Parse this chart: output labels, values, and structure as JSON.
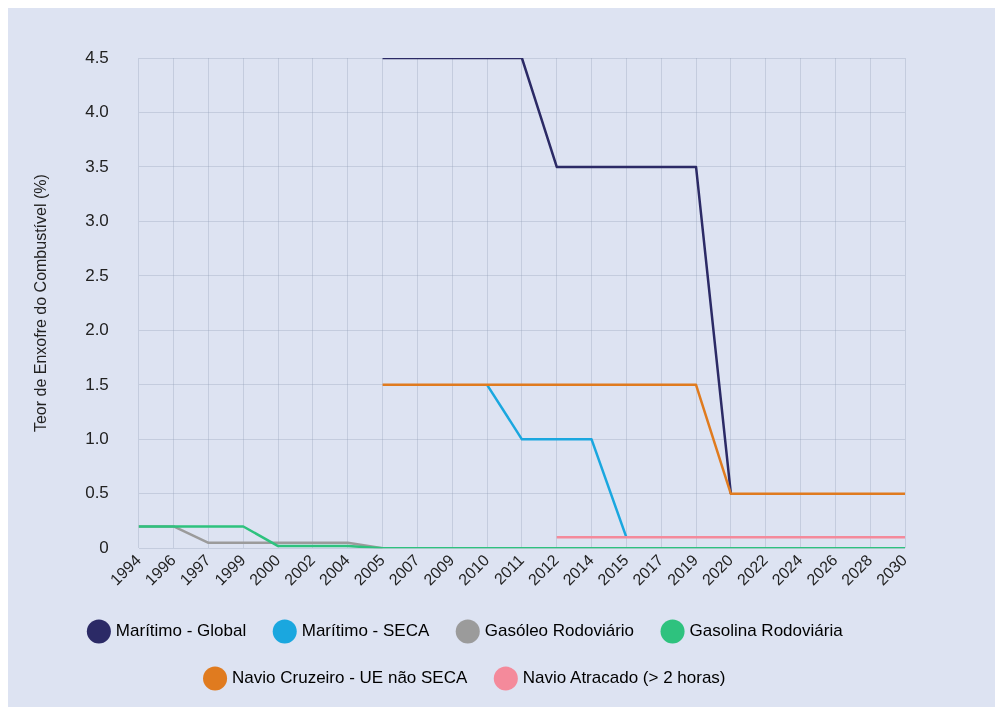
{
  "chart_data": {
    "type": "line",
    "ylabel": "Teor de Enxofre do Combustível (%)",
    "categories": [
      "1994",
      "1996",
      "1997",
      "1999",
      "2000",
      "2002",
      "2004",
      "2005",
      "2007",
      "2009",
      "2010",
      "2011",
      "2012",
      "2014",
      "2015",
      "2017",
      "2019",
      "2020",
      "2022",
      "2024",
      "2026",
      "2028",
      "2030"
    ],
    "series": [
      {
        "name": "Marítimo - Global",
        "color": "#2b2a66",
        "values": [
          null,
          null,
          null,
          null,
          null,
          null,
          null,
          4.5,
          4.5,
          4.5,
          4.5,
          4.5,
          3.5,
          3.5,
          3.5,
          3.5,
          3.5,
          0.5,
          null,
          null,
          null,
          null,
          null
        ]
      },
      {
        "name": "Marítimo - SECA",
        "color": "#1aa7df",
        "values": [
          null,
          null,
          null,
          null,
          null,
          null,
          null,
          null,
          null,
          null,
          1.5,
          1.0,
          1.0,
          1.0,
          0.1,
          null,
          null,
          null,
          null,
          null,
          null,
          null,
          null
        ]
      },
      {
        "name": "Gasóleo Rodoviário",
        "color": "#9b9b9b",
        "values": [
          0.2,
          0.2,
          0.05,
          0.05,
          0.05,
          0.05,
          0.05,
          0,
          null,
          null,
          null,
          null,
          null,
          null,
          null,
          null,
          null,
          null,
          null,
          null,
          null,
          null,
          null
        ]
      },
      {
        "name": "Gasolina Rodoviária",
        "color": "#2ec27e",
        "values": [
          0.2,
          0.2,
          0.2,
          0.2,
          0.02,
          0.02,
          0.02,
          0,
          0,
          0,
          0,
          0,
          0,
          0,
          0,
          0,
          0,
          0,
          0,
          0,
          0,
          0,
          0
        ]
      },
      {
        "name": "Navio Cruzeiro - UE não SECA",
        "color": "#e07b1f",
        "values": [
          null,
          null,
          null,
          null,
          null,
          null,
          null,
          1.5,
          1.5,
          1.5,
          1.5,
          1.5,
          1.5,
          1.5,
          1.5,
          1.5,
          1.5,
          0.5,
          0.5,
          0.5,
          0.5,
          0.5,
          0.5
        ]
      },
      {
        "name": "Navio Atracado (> 2 horas)",
        "color": "#f48a9b",
        "values": [
          null,
          null,
          null,
          null,
          null,
          null,
          null,
          null,
          null,
          null,
          null,
          null,
          0.1,
          0.1,
          0.1,
          0.1,
          0.1,
          0.1,
          0.1,
          0.1,
          0.1,
          0.1,
          0.1
        ]
      }
    ],
    "ylim": [
      0,
      4.5
    ],
    "yticks": [
      0,
      {
        "value": 0.5,
        "label": "0.5"
      },
      {
        "value": 1,
        "label": "1.0"
      },
      {
        "value": 1.5,
        "label": "1.5"
      },
      {
        "value": 2,
        "label": "2.0"
      },
      {
        "value": 2.5,
        "label": "2.5"
      },
      {
        "value": 3,
        "label": "3.0"
      },
      {
        "value": 3.5,
        "label": "3.5"
      },
      {
        "value": 4,
        "label": "4.0"
      },
      {
        "value": 4.5,
        "label": "4.5"
      }
    ],
    "grid": true,
    "legend": "bottom",
    "marker": "none",
    "line_style": "solid"
  }
}
